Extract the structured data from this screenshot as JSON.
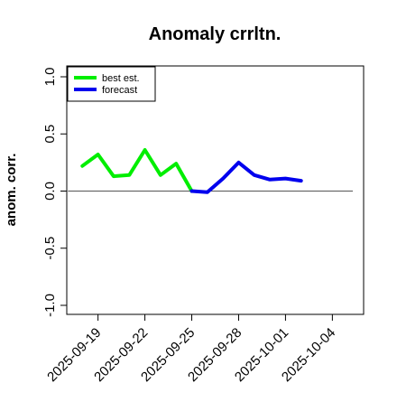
{
  "chart_data": {
    "type": "line",
    "title": "Anomaly crrltn.",
    "xlabel": "",
    "ylabel": "anom. corr.",
    "ylim": [
      -1.0,
      1.0
    ],
    "yticks": [
      -1.0,
      -0.5,
      0.0,
      0.5,
      1.0
    ],
    "ytick_labels": [
      "-1.0",
      "-0.5",
      "0.0",
      "0.5",
      "1.0"
    ],
    "x_dates": [
      "2025-09-18",
      "2025-09-19",
      "2025-09-20",
      "2025-09-21",
      "2025-09-22",
      "2025-09-23",
      "2025-09-24",
      "2025-09-25",
      "2025-09-26",
      "2025-09-27",
      "2025-09-28",
      "2025-09-29",
      "2025-09-30",
      "2025-10-01",
      "2025-10-02"
    ],
    "xlim": [
      "2025-09-17",
      "2025-10-06"
    ],
    "xticks": [
      "2025-09-19",
      "2025-09-22",
      "2025-09-25",
      "2025-09-28",
      "2025-10-01",
      "2025-10-04"
    ],
    "highlight_tick": "2025-09-25",
    "highlight_color": "#1a8a1a",
    "reference_line": 0.0,
    "legend_position": "top-left",
    "series": [
      {
        "name": "best est.",
        "color": "#00ee00",
        "x": [
          "2025-09-18",
          "2025-09-19",
          "2025-09-20",
          "2025-09-21",
          "2025-09-22",
          "2025-09-23",
          "2025-09-24",
          "2025-09-25"
        ],
        "values": [
          0.22,
          0.32,
          0.13,
          0.14,
          0.36,
          0.14,
          0.24,
          0.0
        ]
      },
      {
        "name": "forecast",
        "color": "#0000ee",
        "x": [
          "2025-09-25",
          "2025-09-26",
          "2025-09-27",
          "2025-09-28",
          "2025-09-29",
          "2025-09-30",
          "2025-10-01",
          "2025-10-02"
        ],
        "values": [
          0.0,
          -0.01,
          0.11,
          0.25,
          0.14,
          0.1,
          0.11,
          0.09
        ]
      }
    ]
  }
}
